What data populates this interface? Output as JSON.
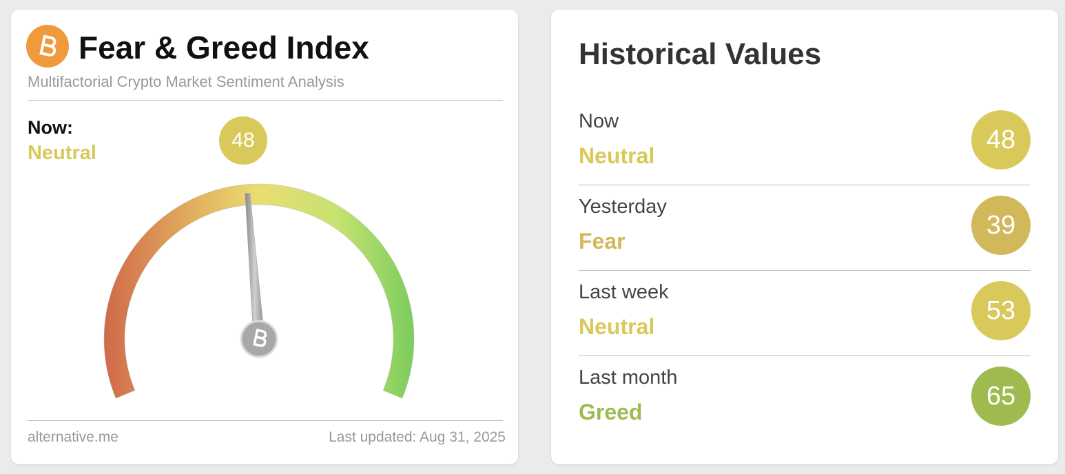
{
  "gauge": {
    "title": "Fear & Greed Index",
    "subtitle": "Multifactorial Crypto Market Sentiment Analysis",
    "now_label": "Now:",
    "classification": "Neutral",
    "value": 48,
    "range": [
      0,
      100
    ],
    "color": "#d9c95a",
    "footer": {
      "source": "alternative.me",
      "updated": "Last updated: Aug 31, 2025"
    }
  },
  "historical": {
    "title": "Historical Values",
    "rows": [
      {
        "label": "Now",
        "classification": "Neutral",
        "value": 48,
        "color": "#d9c95a"
      },
      {
        "label": "Yesterday",
        "classification": "Fear",
        "value": 39,
        "color": "#d1b85a"
      },
      {
        "label": "Last week",
        "classification": "Neutral",
        "value": 53,
        "color": "#d9c95a"
      },
      {
        "label": "Last month",
        "classification": "Greed",
        "value": 65,
        "color": "#9fbb4f"
      }
    ]
  }
}
